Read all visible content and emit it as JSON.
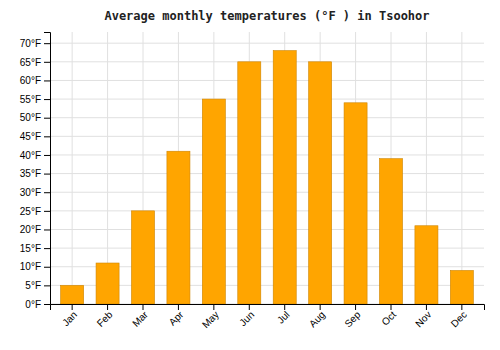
{
  "chart_data": {
    "type": "bar",
    "title": "Average monthly temperatures (°F ) in Tsoohor",
    "categories": [
      "Jan",
      "Feb",
      "Mar",
      "Apr",
      "May",
      "Jun",
      "Jul",
      "Aug",
      "Sep",
      "Oct",
      "Nov",
      "Dec"
    ],
    "values": [
      5,
      11,
      25,
      41,
      55,
      65,
      68,
      65,
      54,
      39,
      21,
      9
    ],
    "color": "#FFA500",
    "ylim": [
      0,
      73
    ],
    "yticks": [
      {
        "value": 0,
        "label": "0°F"
      },
      {
        "value": 5,
        "label": "5°F"
      },
      {
        "value": 10,
        "label": "10°F"
      },
      {
        "value": 15,
        "label": "15°F"
      },
      {
        "value": 20,
        "label": "20°F"
      },
      {
        "value": 25,
        "label": "25°F"
      },
      {
        "value": 30,
        "label": "30°F"
      },
      {
        "value": 35,
        "label": "35°F"
      },
      {
        "value": 40,
        "label": "40°F"
      },
      {
        "value": 45,
        "label": "45°F"
      },
      {
        "value": 50,
        "label": "50°F"
      },
      {
        "value": 55,
        "label": "55°F"
      },
      {
        "value": 60,
        "label": "60°F"
      },
      {
        "value": 65,
        "label": "65°F"
      },
      {
        "value": 70,
        "label": "70°F"
      }
    ],
    "grid": true
  }
}
